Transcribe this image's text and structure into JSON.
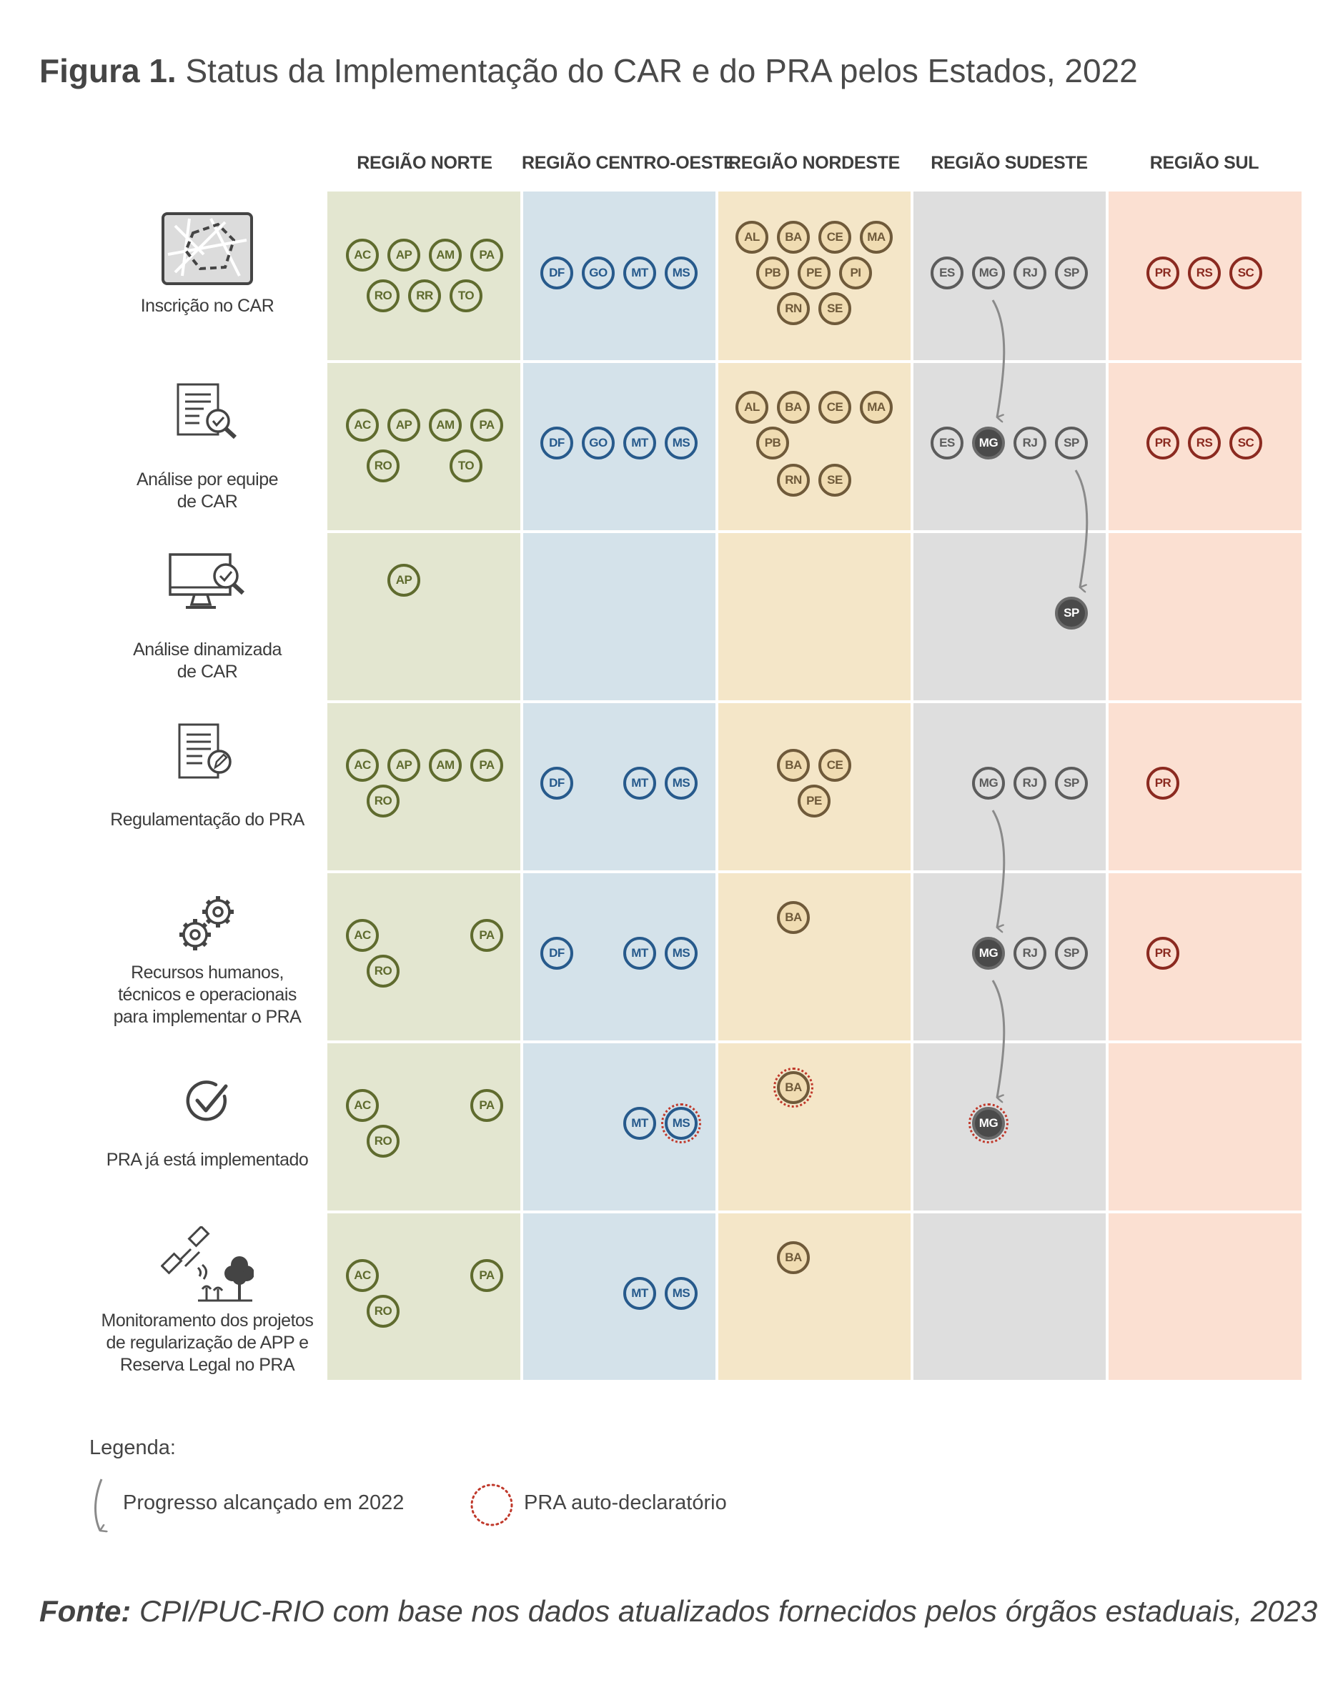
{
  "title": {
    "bold": "Figura 1.",
    "rest": " Status da Implementação do CAR e do PRA pelos Estados, 2022"
  },
  "colors": {
    "norte": {
      "bg": "#e3e6d0",
      "fg": "#5f6b2e",
      "fill": "#e3e6d0",
      "dark": "#555555"
    },
    "centro": {
      "bg": "#d4e2ea",
      "fg": "#275a8c",
      "fill": "#d4e2ea"
    },
    "nordeste": {
      "bg": "#f4e6c8",
      "fg": "#6f5a3a",
      "fill": "#f0dcb2"
    },
    "sudeste": {
      "bg": "#dedede",
      "fg": "#5c5c5c",
      "fill": "#dedede",
      "dark": "#4a4a4a"
    },
    "sul": {
      "bg": "#fbe0d2",
      "fg": "#8b2a20",
      "fill": "#fbe0d2"
    },
    "self_declared": "#c0392b",
    "arrow": "#8a8a8a"
  },
  "regions": [
    {
      "key": "norte",
      "label": "REGIÃO NORTE"
    },
    {
      "key": "centro",
      "label": "REGIÃO CENTRO-OESTE"
    },
    {
      "key": "nordeste",
      "label": "REGIÃO NORDESTE"
    },
    {
      "key": "sudeste",
      "label": "REGIÃO SUDESTE"
    },
    {
      "key": "sul",
      "label": "REGIÃO SUL"
    }
  ],
  "rows": [
    {
      "label": [
        "Inscrição no CAR"
      ],
      "icon": "map-icon"
    },
    {
      "label": [
        "Análise por equipe",
        "de CAR"
      ],
      "icon": "document-search-icon"
    },
    {
      "label": [
        "Análise dinamizada",
        "de CAR"
      ],
      "icon": "computer-search-icon"
    },
    {
      "label": [
        "Regulamentação do PRA"
      ],
      "icon": "document-edit-icon"
    },
    {
      "label": [
        "Recursos humanos,",
        "técnicos e operacionais",
        "para implementar o PRA"
      ],
      "icon": "gears-icon"
    },
    {
      "label": [
        "PRA já está implementado"
      ],
      "icon": "check-icon"
    },
    {
      "label": [
        "Monitoramento dos projetos",
        "de regularização de APP e",
        "Reserva Legal no PRA"
      ],
      "icon": "satellite-tree-icon"
    }
  ],
  "badges": [
    {
      "row": 0,
      "region": "norte",
      "states": [
        "AC",
        "AP",
        "AM",
        "PA",
        null,
        "RO",
        "RR",
        "TO"
      ]
    },
    {
      "row": 0,
      "region": "centro",
      "states": [
        "DF",
        "GO",
        "MT",
        "MS"
      ]
    },
    {
      "row": 0,
      "region": "nordeste",
      "states": [
        "AL",
        "BA",
        "CE",
        "MA",
        "PB",
        "PE",
        "PI",
        "RN",
        "SE"
      ]
    },
    {
      "row": 0,
      "region": "sudeste",
      "states": [
        "ES",
        "MG",
        "RJ",
        "SP"
      ]
    },
    {
      "row": 0,
      "region": "sul",
      "states": [
        "PR",
        "RS",
        "SC"
      ]
    },
    {
      "row": 1,
      "region": "norte",
      "states": [
        "AC",
        "AP",
        "AM",
        "PA",
        "RO",
        "TO"
      ]
    },
    {
      "row": 1,
      "region": "centro",
      "states": [
        "DF",
        "GO",
        "MT",
        "MS"
      ]
    },
    {
      "row": 1,
      "region": "nordeste",
      "states": [
        "AL",
        "BA",
        "CE",
        "MA",
        "PB",
        "RN",
        "SE"
      ]
    },
    {
      "row": 1,
      "region": "sudeste",
      "states": [
        "ES",
        "MG",
        "RJ",
        "SP"
      ],
      "dark": [
        "MG"
      ]
    },
    {
      "row": 1,
      "region": "sul",
      "states": [
        "PR",
        "RS",
        "SC"
      ]
    },
    {
      "row": 2,
      "region": "norte",
      "states": [
        "AP"
      ]
    },
    {
      "row": 2,
      "region": "sudeste",
      "states": [
        "SP"
      ],
      "dark": [
        "SP"
      ]
    },
    {
      "row": 3,
      "region": "norte",
      "states": [
        "AC",
        "AP",
        "AM",
        "PA",
        "RO"
      ]
    },
    {
      "row": 3,
      "region": "centro",
      "states": [
        "DF",
        "MT",
        "MS"
      ]
    },
    {
      "row": 3,
      "region": "nordeste",
      "states": [
        "BA",
        "CE",
        "PE"
      ]
    },
    {
      "row": 3,
      "region": "sudeste",
      "states": [
        "MG",
        "RJ",
        "SP"
      ]
    },
    {
      "row": 3,
      "region": "sul",
      "states": [
        "PR"
      ]
    },
    {
      "row": 4,
      "region": "norte",
      "states": [
        "AC",
        "PA",
        "RO"
      ]
    },
    {
      "row": 4,
      "region": "centro",
      "states": [
        "DF",
        "MT",
        "MS"
      ]
    },
    {
      "row": 4,
      "region": "nordeste",
      "states": [
        "BA"
      ]
    },
    {
      "row": 4,
      "region": "sudeste",
      "states": [
        "MG",
        "RJ",
        "SP"
      ],
      "dark": [
        "MG"
      ]
    },
    {
      "row": 4,
      "region": "sul",
      "states": [
        "PR"
      ]
    },
    {
      "row": 5,
      "region": "norte",
      "states": [
        "AC",
        "PA",
        "RO"
      ]
    },
    {
      "row": 5,
      "region": "centro",
      "states": [
        "MT",
        "MS"
      ],
      "self": [
        "MS"
      ]
    },
    {
      "row": 5,
      "region": "nordeste",
      "states": [
        "BA"
      ],
      "self": [
        "BA"
      ]
    },
    {
      "row": 5,
      "region": "sudeste",
      "states": [
        "MG"
      ],
      "dark": [
        "MG"
      ],
      "self": [
        "MG"
      ]
    },
    {
      "row": 6,
      "region": "norte",
      "states": [
        "AC",
        "PA",
        "RO"
      ]
    },
    {
      "row": 6,
      "region": "centro",
      "states": [
        "MT",
        "MS"
      ]
    },
    {
      "row": 6,
      "region": "nordeste",
      "states": [
        "BA"
      ]
    }
  ],
  "legend": {
    "title": "Legenda:",
    "progress": "Progresso alcançado em 2022",
    "self_declared": "PRA auto-declaratório"
  },
  "source": {
    "bold": "Fonte:",
    "rest": " CPI/PUC-RIO com base nos dados atualizados fornecidos pelos órgãos estaduais, 2023"
  }
}
